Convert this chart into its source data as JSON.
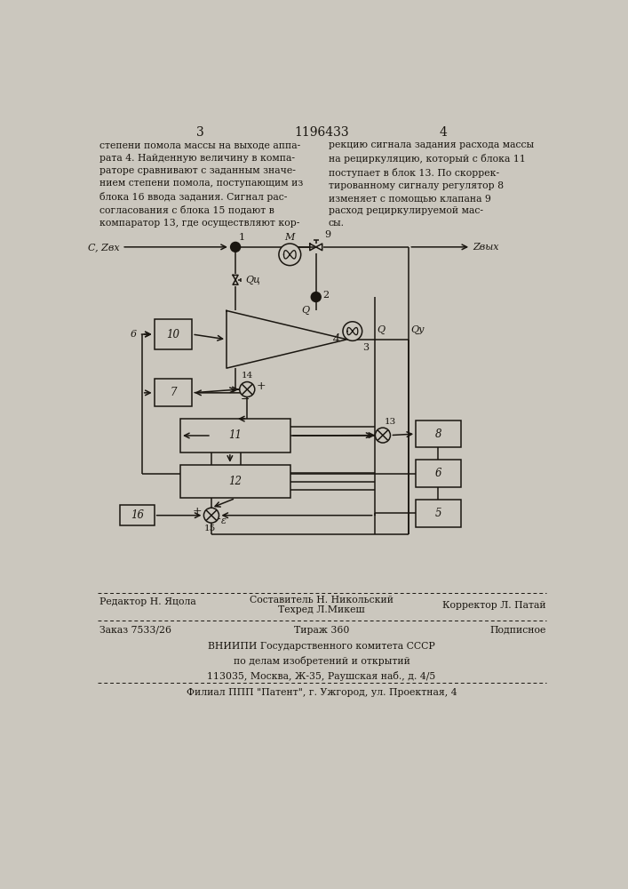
{
  "bg_color": "#d8d4cc",
  "header_num_left": "3",
  "header_patent": "1196433",
  "header_num_right": "4",
  "text_left": "степени помола массы на выходе аппа-\nрата 4. Найденную величину в компа-\nраторе сравнивают с заданным значе-\nнием степени помола, поступающим из\nблока 16 ввода задания. Сигнал рас-\nсогласования с блока 15 подают в\nкомпаратор 13, где осуществляют кор-",
  "text_right": "рекцию сигнала задания расхода массы\nна рециркуляцию, который с блока 11\nпоступает в блок 13. По скоррек-\nтированному сигналу регулятор 8\nизменяет с помощью клапана 9\nрасход рециркулируемой мас-\nсы.",
  "footer_line1_left": "Редактор Н. Яцола",
  "footer_line1_center1": "Составитель Н. Никольский",
  "footer_line1_center2": "Техред Л.Микеш",
  "footer_line1_right": "Корректор Л. Патай",
  "footer_line2_left": "Заказ 7533/26",
  "footer_line2_center": "Тираж 360",
  "footer_line2_right": "Подписное",
  "footer_line3": "ВНИИПИ Государственного комитета СССР\nпо делам изобретений и открытий\n113035, Москва, Ж-35, Раушская наб., д. 4/5",
  "footer_line4": "Филиал ППП \"Патент\", г. Ужгород, ул. Проектная, 4"
}
